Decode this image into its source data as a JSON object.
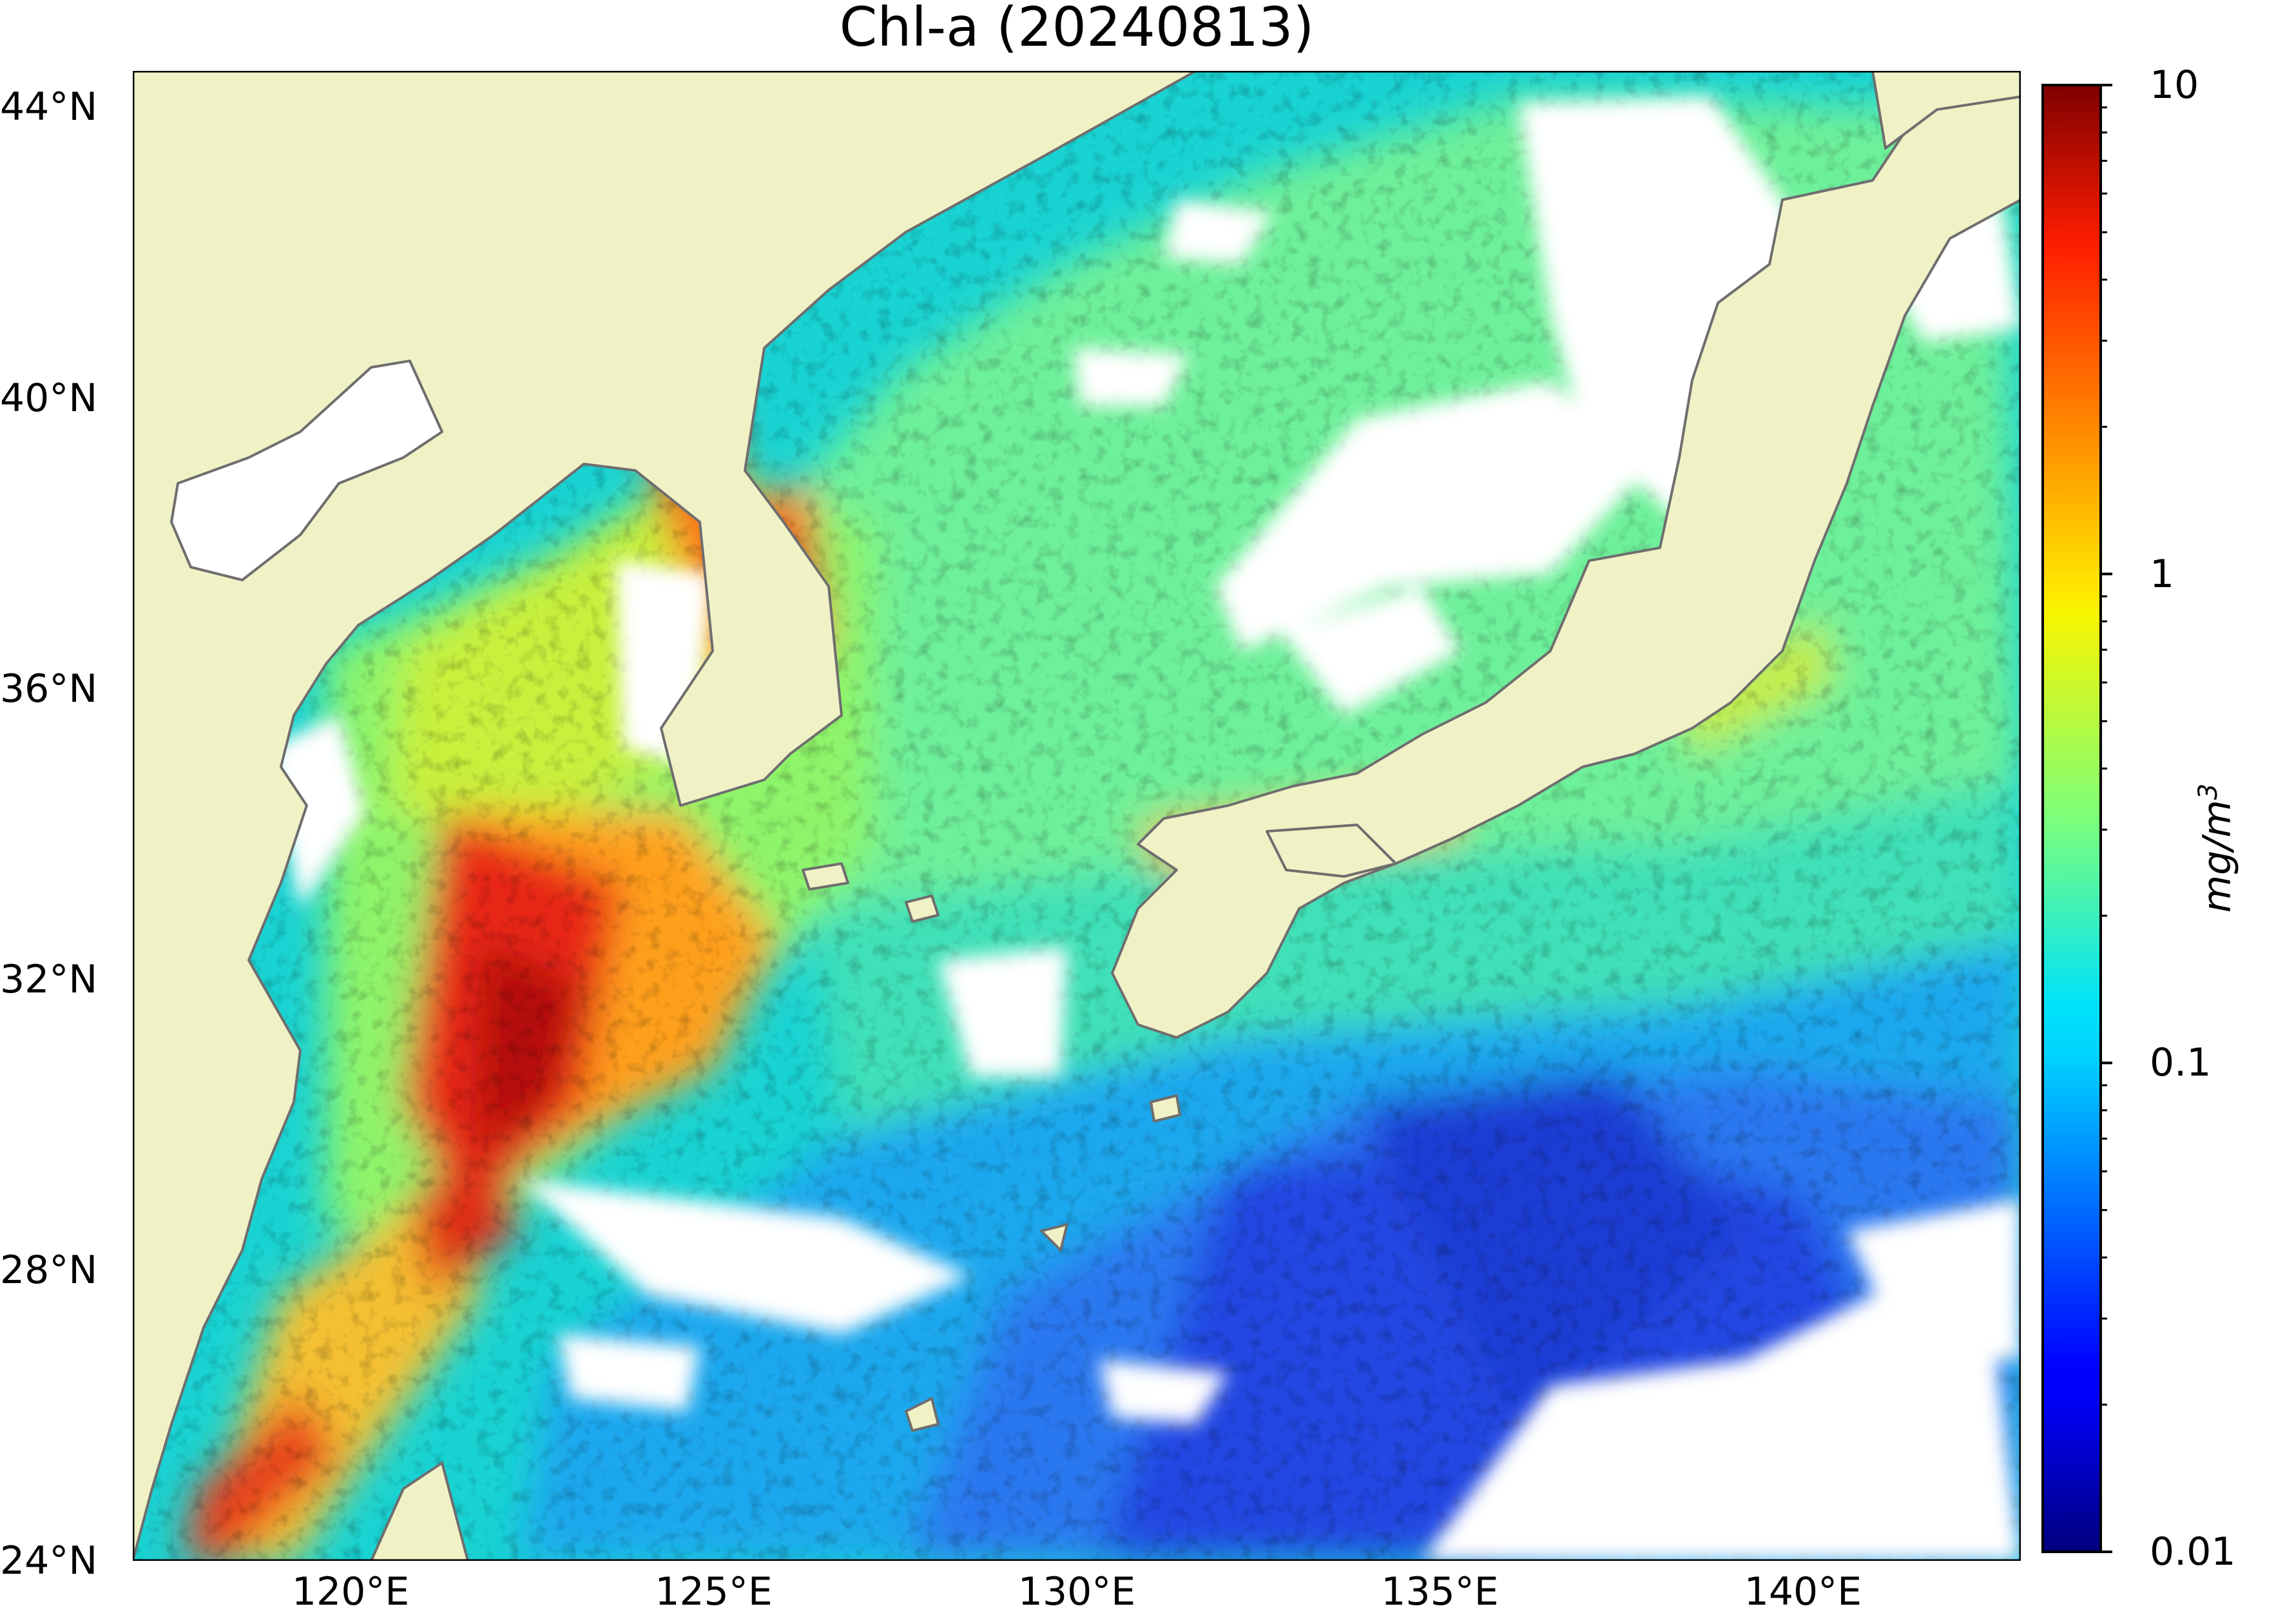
{
  "title": "Chl-a (20240813)",
  "map": {
    "region": "East Asian marginal seas (Bohai, Yellow Sea, East China Sea, Sea of Japan, NW Pacific)",
    "lat_range": [
      24,
      44.5
    ],
    "lon_range": [
      117,
      143
    ],
    "lat_ticks": [
      {
        "value": 44,
        "label": "44°N"
      },
      {
        "value": 40,
        "label": "40°N"
      },
      {
        "value": 36,
        "label": "36°N"
      },
      {
        "value": 32,
        "label": "32°N"
      },
      {
        "value": 28,
        "label": "28°N"
      },
      {
        "value": 24,
        "label": "24°N"
      }
    ],
    "lon_ticks": [
      {
        "value": 120,
        "label": "120°E"
      },
      {
        "value": 125,
        "label": "125°E"
      },
      {
        "value": 130,
        "label": "130°E"
      },
      {
        "value": 135,
        "label": "135°E"
      },
      {
        "value": 140,
        "label": "140°E"
      }
    ],
    "land_color": "#f0f2c6",
    "no_data_color": "#ffffff",
    "coastline_color": "#6e6e6e"
  },
  "colorbar": {
    "colormap": "jet",
    "scale": "log",
    "range": [
      0.01,
      10
    ],
    "unit_label": "mg/m",
    "unit_exponent": "3",
    "ticks": [
      {
        "value": 10,
        "label": "10"
      },
      {
        "value": 1,
        "label": "1"
      },
      {
        "value": 0.1,
        "label": "0.1"
      },
      {
        "value": 0.01,
        "label": "0.01"
      }
    ]
  }
}
